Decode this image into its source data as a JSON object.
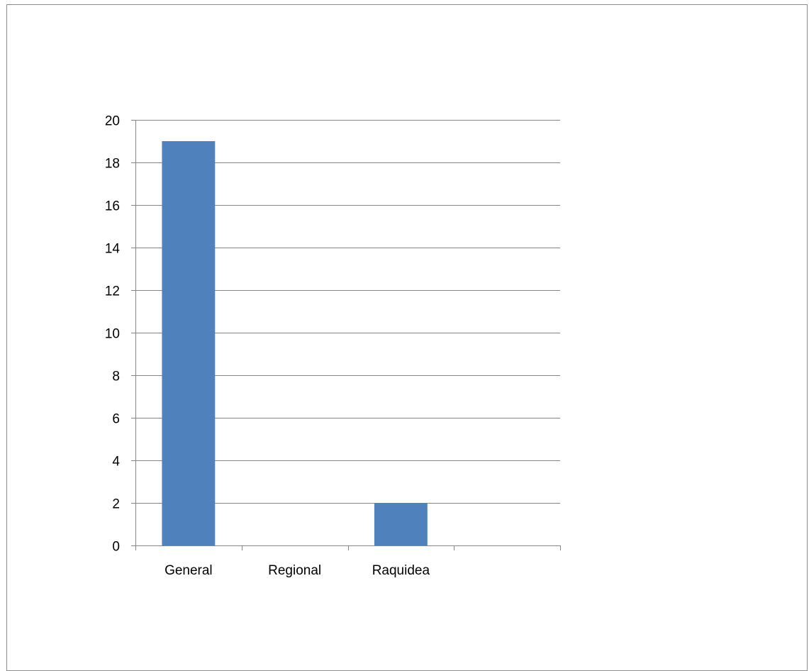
{
  "chart_data": {
    "type": "bar",
    "categories": [
      "General",
      "Regional",
      "Raquidea",
      ""
    ],
    "values": [
      19,
      0,
      2,
      0
    ],
    "title": "",
    "xlabel": "",
    "ylabel": "",
    "ylim": [
      0,
      20
    ],
    "y_ticks": [
      "0",
      "2",
      "4",
      "6",
      "8",
      "10",
      "12",
      "14",
      "16",
      "18",
      "20"
    ],
    "grid": true,
    "legend": "none",
    "colors": {
      "bar": "#4f81bd",
      "grid": "#868686",
      "axis": "#868686"
    }
  }
}
